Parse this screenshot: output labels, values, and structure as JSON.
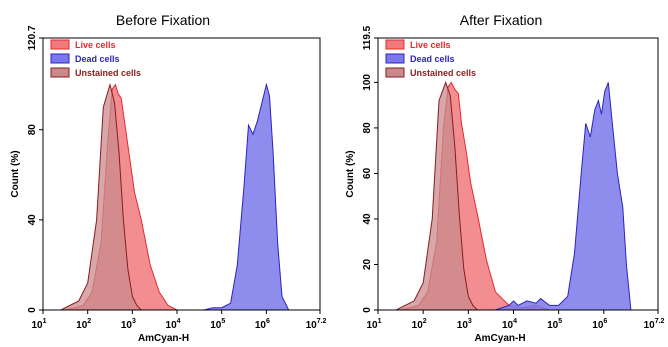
{
  "chart_data": [
    {
      "type": "area",
      "title": "Before Fixation",
      "xlabel": "AmCyan-H",
      "ylabel": "Count (%)",
      "x_scale": "log",
      "xlim": [
        1,
        7.2
      ],
      "ylim": [
        0,
        120.7
      ],
      "x_ticks": [
        {
          "base": "10",
          "exp": "1"
        },
        {
          "base": "10",
          "exp": "2"
        },
        {
          "base": "10",
          "exp": "3"
        },
        {
          "base": "10",
          "exp": "4"
        },
        {
          "base": "10",
          "exp": "5"
        },
        {
          "base": "10",
          "exp": "6"
        },
        {
          "base": "10",
          "exp": "7.2"
        }
      ],
      "y_ticks": [
        "0",
        "40",
        "80",
        "120.7"
      ],
      "y_tick_values": [
        0,
        40,
        80,
        120.7
      ],
      "legend": {
        "position": "top-left",
        "entries": [
          "Live cells",
          "Dead cells",
          "Unstained cells"
        ]
      },
      "series": [
        {
          "name": "Live cells",
          "color": "#e8282e",
          "fill": "#f07a7e",
          "x_log": [
            1.5,
            1.9,
            2.1,
            2.3,
            2.45,
            2.55,
            2.62,
            2.68,
            2.75,
            2.85,
            2.95,
            3.05,
            3.2,
            3.4,
            3.6,
            3.8,
            4.0
          ],
          "y": [
            0,
            2,
            8,
            30,
            75,
            98,
            100,
            96,
            94,
            80,
            66,
            52,
            40,
            20,
            8,
            2,
            0
          ]
        },
        {
          "name": "Dead cells",
          "color": "#2b24c0",
          "fill": "#7a78ea",
          "x_log": [
            4.6,
            4.8,
            5.0,
            5.2,
            5.35,
            5.5,
            5.6,
            5.7,
            5.8,
            5.9,
            6.0,
            6.07,
            6.15,
            6.25,
            6.35,
            6.5
          ],
          "y": [
            0,
            1,
            1,
            3,
            20,
            55,
            82,
            78,
            84,
            92,
            100,
            95,
            70,
            30,
            6,
            0
          ]
        },
        {
          "name": "Unstained cells",
          "color": "#8c1b1b",
          "fill": "#c98a8c",
          "x_log": [
            1.4,
            1.8,
            2.0,
            2.2,
            2.35,
            2.5,
            2.6,
            2.7,
            2.8,
            2.9,
            3.0,
            3.1,
            3.2
          ],
          "y": [
            0,
            4,
            12,
            40,
            90,
            100,
            92,
            70,
            40,
            18,
            6,
            2,
            0
          ]
        }
      ]
    },
    {
      "type": "area",
      "title": "After Fixation",
      "xlabel": "AmCyan-H",
      "ylabel": "Count (%)",
      "x_scale": "log",
      "xlim": [
        1,
        7.2
      ],
      "ylim": [
        0,
        119.5
      ],
      "x_ticks": [
        {
          "base": "10",
          "exp": "1"
        },
        {
          "base": "10",
          "exp": "2"
        },
        {
          "base": "10",
          "exp": "3"
        },
        {
          "base": "10",
          "exp": "4"
        },
        {
          "base": "10",
          "exp": "5"
        },
        {
          "base": "10",
          "exp": "6"
        },
        {
          "base": "10",
          "exp": "7.2"
        }
      ],
      "y_ticks": [
        "0",
        "20",
        "40",
        "60",
        "80",
        "100",
        "119.5"
      ],
      "y_tick_values": [
        0,
        20,
        40,
        60,
        80,
        100,
        119.5
      ],
      "legend": {
        "position": "top-left",
        "entries": [
          "Live cells",
          "Dead cells",
          "Unstained cells"
        ]
      },
      "series": [
        {
          "name": "Live cells",
          "color": "#e8282e",
          "fill": "#f07a7e",
          "x_log": [
            1.5,
            1.9,
            2.1,
            2.3,
            2.45,
            2.55,
            2.62,
            2.7,
            2.78,
            2.85,
            2.95,
            3.05,
            3.2,
            3.4,
            3.6,
            3.9,
            4.2,
            4.5,
            4.8
          ],
          "y": [
            0,
            2,
            8,
            30,
            80,
            98,
            100,
            97,
            95,
            82,
            70,
            56,
            42,
            22,
            8,
            2,
            1,
            2,
            0
          ]
        },
        {
          "name": "Dead cells",
          "color": "#2b24c0",
          "fill": "#7a78ea",
          "x_log": [
            3.6,
            3.9,
            4.0,
            4.1,
            4.3,
            4.5,
            4.6,
            4.8,
            5.0,
            5.2,
            5.35,
            5.5,
            5.6,
            5.7,
            5.8,
            5.88,
            5.95,
            6.02,
            6.1,
            6.2,
            6.3,
            6.42,
            6.5,
            6.6
          ],
          "y": [
            0,
            2,
            4,
            2,
            4,
            3,
            5,
            2,
            2,
            6,
            25,
            60,
            82,
            76,
            88,
            92,
            86,
            96,
            100,
            80,
            60,
            45,
            20,
            0
          ]
        },
        {
          "name": "Unstained cells",
          "color": "#8c1b1b",
          "fill": "#c98a8c",
          "x_log": [
            1.4,
            1.8,
            2.0,
            2.2,
            2.35,
            2.5,
            2.6,
            2.7,
            2.8,
            2.9,
            3.0,
            3.1,
            3.2
          ],
          "y": [
            0,
            4,
            12,
            40,
            92,
            100,
            94,
            72,
            42,
            18,
            6,
            2,
            0
          ]
        }
      ]
    }
  ]
}
